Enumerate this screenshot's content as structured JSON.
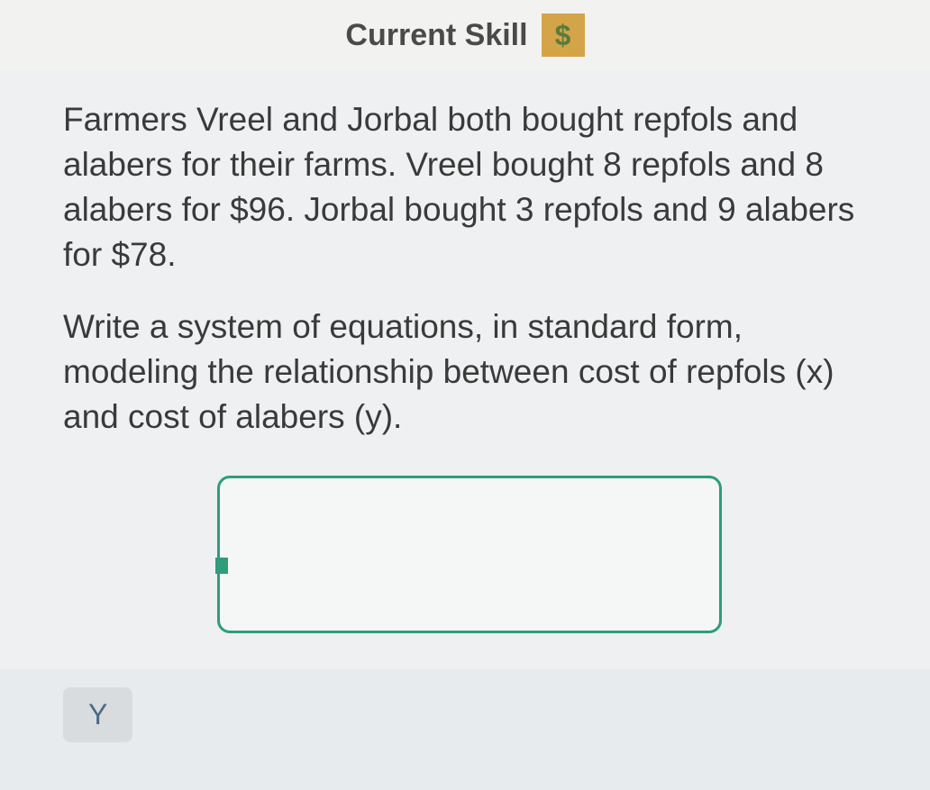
{
  "header": {
    "title": "Current Skill",
    "badge_symbol": "$"
  },
  "problem": {
    "paragraph1": "Farmers Vreel and Jorbal both bought repfols and alabers for their farms. Vreel bought 8 repfols and 8 alabers for $96. Jorbal bought 3 repfols and 9 alabers for $78.",
    "paragraph2": "Write a system of equations, in standard form, modeling the relationship between cost of repfols (x) and cost of alabers (y)."
  },
  "footer": {
    "key_label": "Y"
  },
  "colors": {
    "header_bg": "#f2f2f0",
    "content_bg": "#eef0f1",
    "badge_bg": "#d4a548",
    "badge_text": "#5a7a3a",
    "text_color": "#3a3a3a",
    "answer_border": "#2d9d7a",
    "key_bg": "#d8dcde",
    "key_text": "#4a6a85"
  }
}
